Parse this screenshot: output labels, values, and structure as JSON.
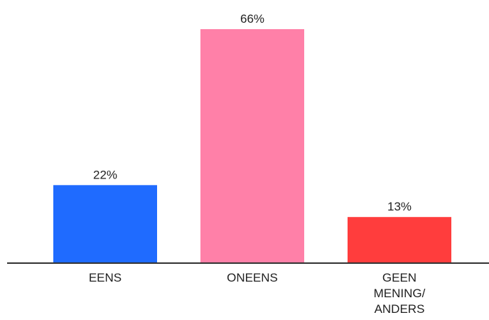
{
  "chart_data": {
    "type": "bar",
    "categories": [
      [
        "EENS"
      ],
      [
        "ONEENS"
      ],
      [
        "GEEN",
        "MENING/",
        "ANDERS"
      ]
    ],
    "values": [
      22,
      66,
      13
    ],
    "value_labels": [
      "22%",
      "66%",
      "13%"
    ],
    "colors": [
      "#1f6bff",
      "#ff80a8",
      "#ff3d3d"
    ],
    "axis_color": "#333333",
    "ylim": [
      0,
      66
    ],
    "grid": false,
    "legend": "none"
  }
}
